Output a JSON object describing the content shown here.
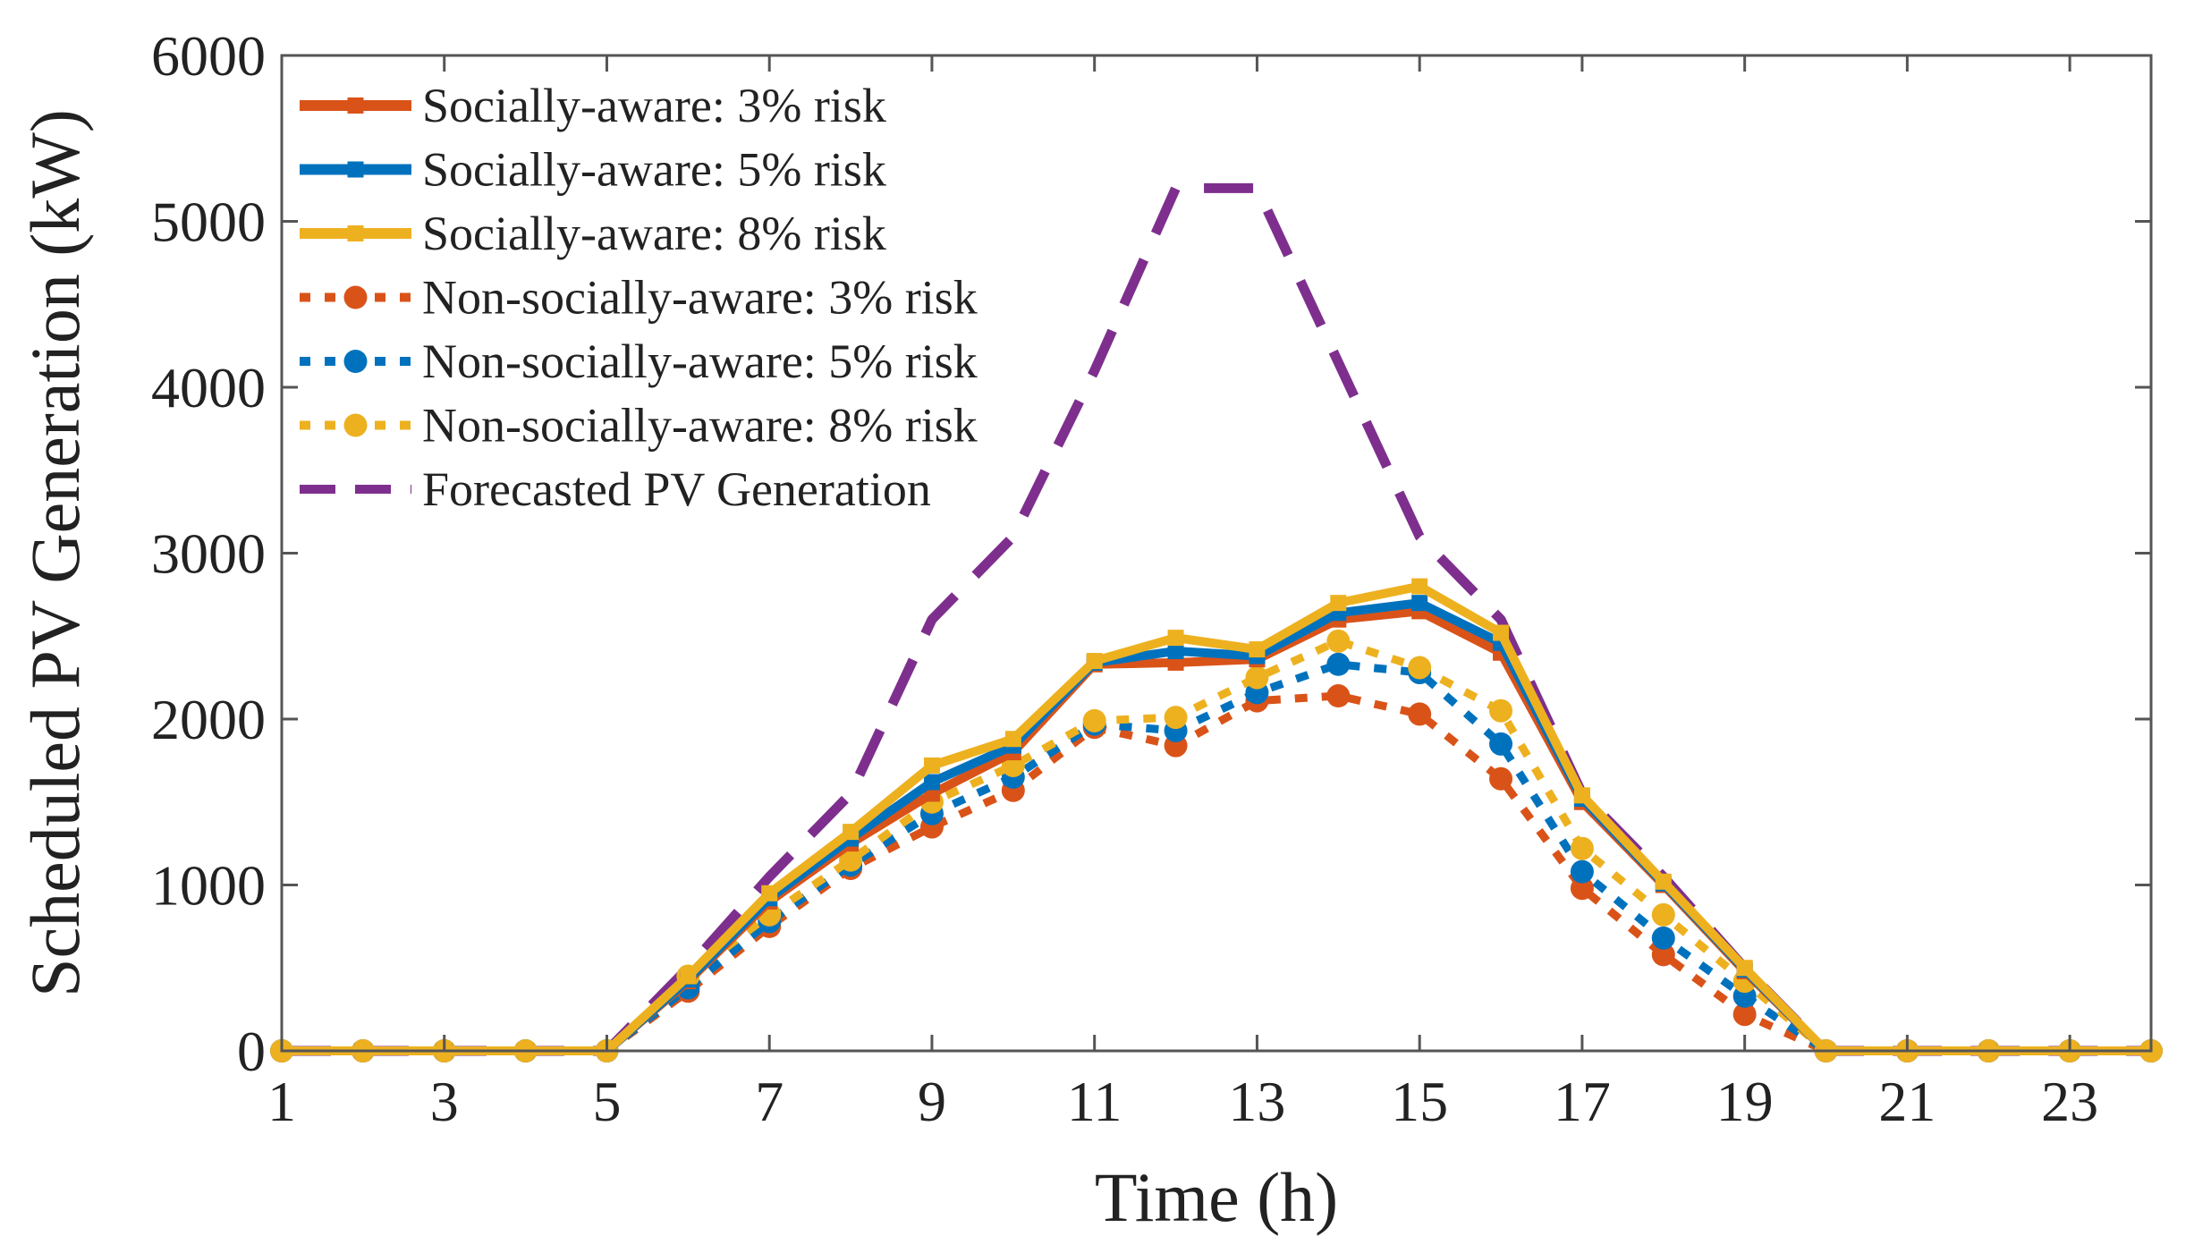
{
  "chart_data": {
    "type": "line",
    "title": "",
    "xlabel": "Time (h)",
    "ylabel": "Scheduled PV Generation (kW)",
    "xlim": [
      1,
      24
    ],
    "ylim": [
      0,
      6000
    ],
    "xticks": [
      1,
      3,
      5,
      7,
      9,
      11,
      13,
      15,
      17,
      19,
      21,
      23
    ],
    "yticks": [
      0,
      1000,
      2000,
      3000,
      4000,
      5000,
      6000
    ],
    "grid": false,
    "legend_position": "top-left",
    "x": [
      1,
      2,
      3,
      4,
      5,
      6,
      7,
      8,
      9,
      10,
      11,
      12,
      13,
      14,
      15,
      16,
      17,
      18,
      19,
      20,
      21,
      22,
      23,
      24
    ],
    "series": [
      {
        "name": "Socially-aware: 3% risk",
        "color": "#d95319",
        "style": "solid",
        "marker": "square",
        "values": [
          0,
          0,
          0,
          0,
          0,
          420,
          900,
          1250,
          1550,
          1800,
          2330,
          2340,
          2360,
          2600,
          2650,
          2400,
          1500,
          1000,
          480,
          0,
          0,
          0,
          0,
          0
        ]
      },
      {
        "name": "Socially-aware: 5% risk",
        "color": "#0072bd",
        "style": "solid",
        "marker": "square",
        "values": [
          0,
          0,
          0,
          0,
          0,
          430,
          920,
          1280,
          1620,
          1840,
          2340,
          2410,
          2380,
          2640,
          2700,
          2460,
          1520,
          1010,
          490,
          0,
          0,
          0,
          0,
          0
        ]
      },
      {
        "name": "Socially-aware: 8% risk",
        "color": "#edb120",
        "style": "solid",
        "marker": "square",
        "values": [
          0,
          0,
          0,
          0,
          0,
          450,
          950,
          1320,
          1720,
          1880,
          2350,
          2490,
          2420,
          2700,
          2800,
          2520,
          1540,
          1020,
          500,
          0,
          0,
          0,
          0,
          0
        ]
      },
      {
        "name": "Non-socially-aware: 3% risk",
        "color": "#d95319",
        "style": "dotted",
        "marker": "circle",
        "values": [
          0,
          0,
          0,
          0,
          0,
          360,
          750,
          1100,
          1350,
          1570,
          1950,
          1840,
          2110,
          2140,
          2030,
          1640,
          980,
          580,
          220,
          0,
          0,
          0,
          0,
          0
        ]
      },
      {
        "name": "Non-socially-aware: 5% risk",
        "color": "#0072bd",
        "style": "dotted",
        "marker": "circle",
        "values": [
          0,
          0,
          0,
          0,
          0,
          380,
          780,
          1120,
          1430,
          1650,
          1970,
          1930,
          2160,
          2330,
          2280,
          1850,
          1080,
          680,
          330,
          0,
          0,
          0,
          0,
          0
        ]
      },
      {
        "name": "Non-socially-aware: 8% risk",
        "color": "#edb120",
        "style": "dotted",
        "marker": "circle",
        "values": [
          0,
          0,
          0,
          0,
          0,
          450,
          820,
          1150,
          1500,
          1720,
          1990,
          2010,
          2250,
          2470,
          2310,
          2050,
          1220,
          820,
          420,
          0,
          0,
          0,
          0,
          0
        ]
      },
      {
        "name": "Forecasted PV Generation",
        "color": "#7e2f8e",
        "style": "dashed",
        "marker": "none",
        "values": [
          0,
          0,
          0,
          0,
          0,
          500,
          1050,
          1550,
          2600,
          3100,
          4100,
          5200,
          5200,
          4150,
          3100,
          2600,
          1550,
          1050,
          500,
          0,
          0,
          0,
          0,
          0
        ]
      }
    ]
  }
}
